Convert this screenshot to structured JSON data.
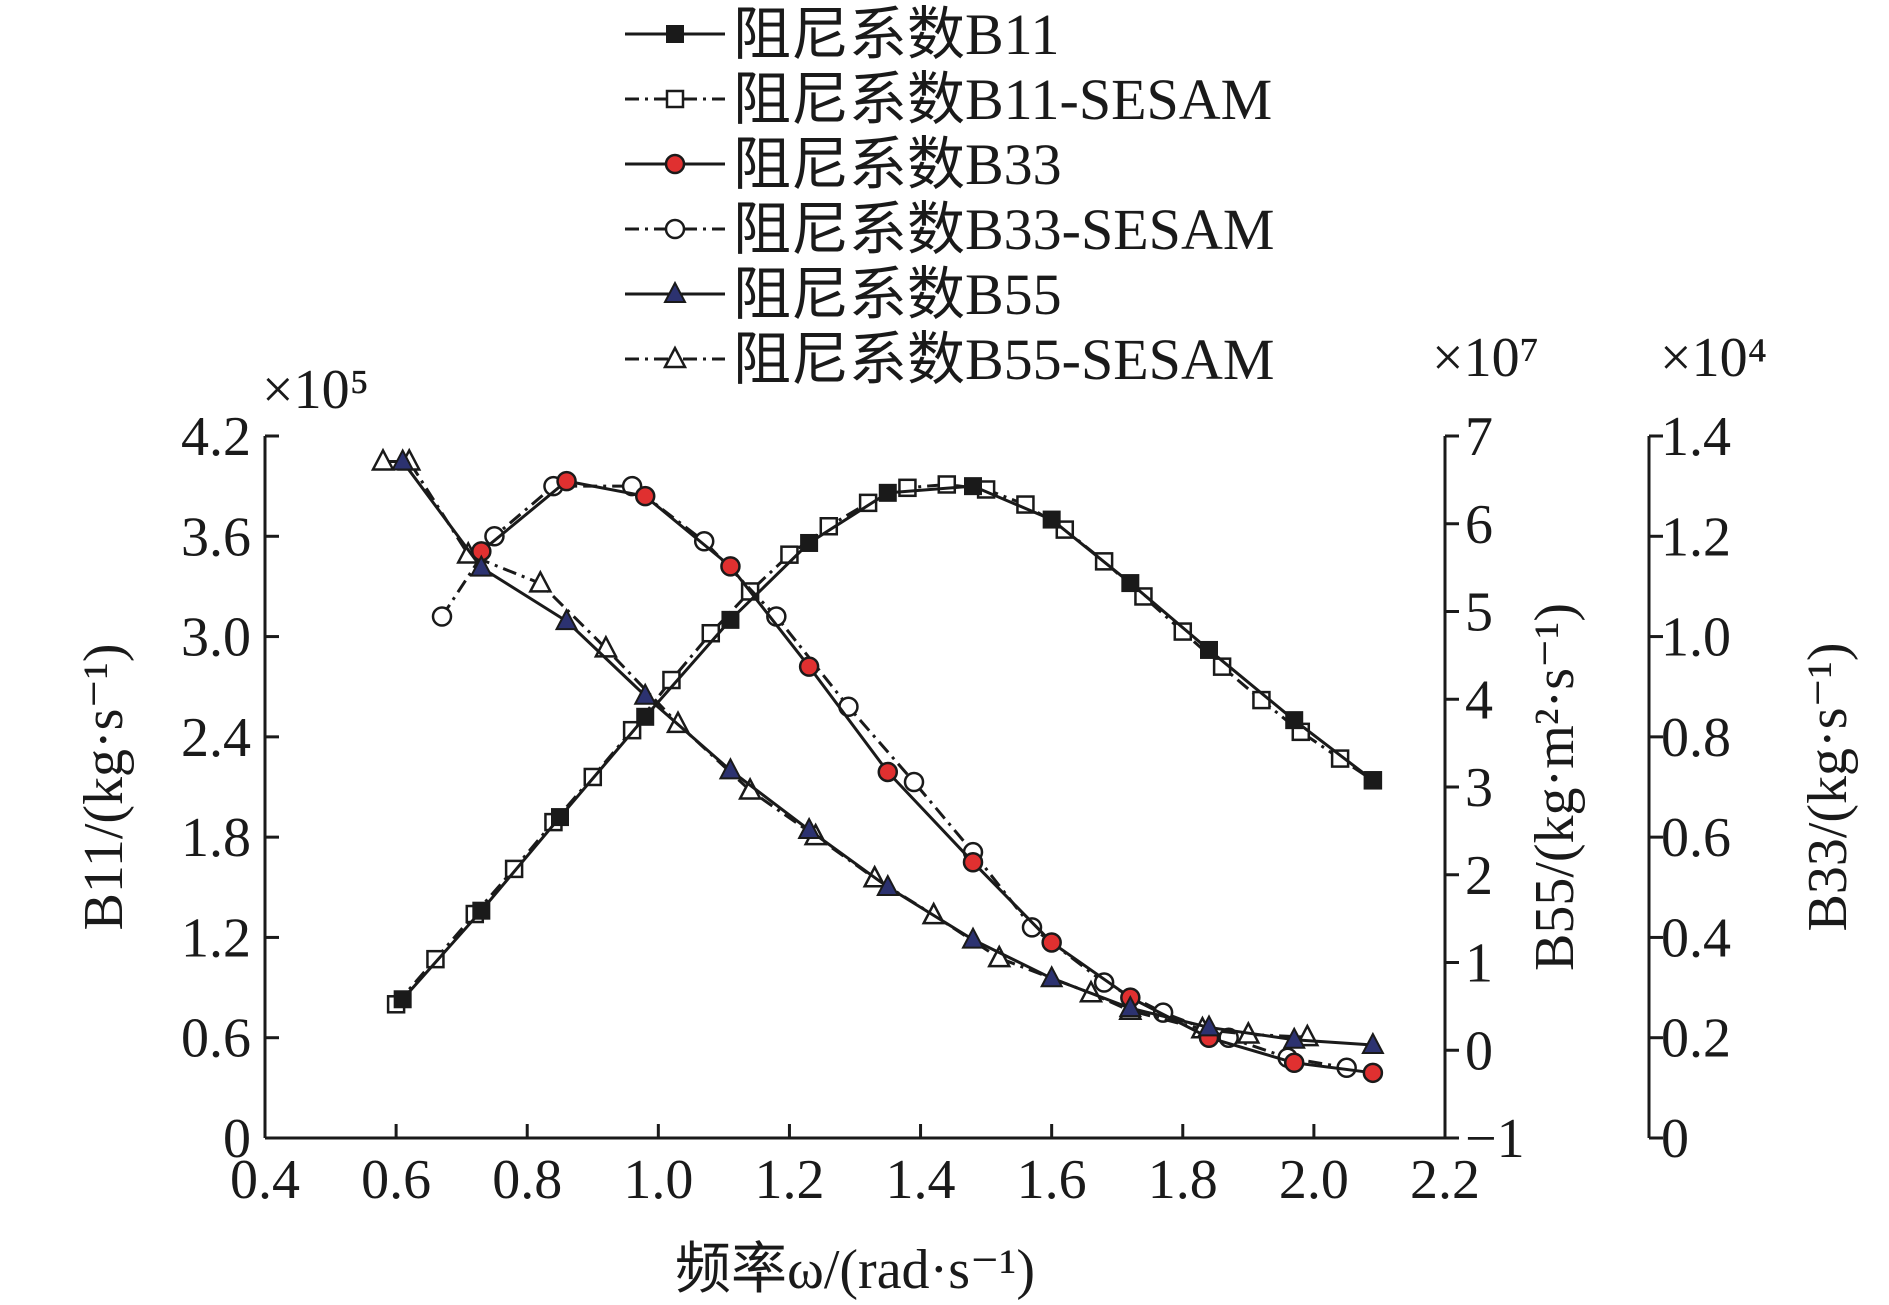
{
  "chart_data": {
    "type": "line",
    "xlabel": "频率ω/(rad·s⁻¹)",
    "xlim": [
      0.4,
      2.2
    ],
    "x_ticks": [
      "0.4",
      "0.6",
      "0.8",
      "1.0",
      "1.2",
      "1.4",
      "1.6",
      "1.8",
      "2.0",
      "2.2"
    ],
    "axes": {
      "left": {
        "label": "B11/(kg·s⁻¹)",
        "multiplier": "×10⁵",
        "ylim": [
          0,
          4.2
        ],
        "ticks": [
          "0",
          "0.6",
          "1.2",
          "1.8",
          "2.4",
          "3.0",
          "3.6",
          "4.2"
        ]
      },
      "right_inner": {
        "label": "B55/(kg·m²·s⁻¹)",
        "multiplier": "×10⁷",
        "ylim": [
          -1,
          7
        ],
        "ticks": [
          "−1",
          "0",
          "1",
          "2",
          "3",
          "4",
          "5",
          "6",
          "7"
        ]
      },
      "right_outer": {
        "label": "B33/(kg·s⁻¹)",
        "multiplier": "×10⁴",
        "ylim": [
          0,
          1.4
        ],
        "ticks": [
          "0",
          "0.2",
          "0.4",
          "0.6",
          "0.8",
          "1.0",
          "1.2",
          "1.4"
        ]
      }
    },
    "legend_position": "top-center",
    "series": [
      {
        "name": "阻尼系数B11",
        "axis": "left",
        "marker": "square-filled",
        "line": "solid",
        "color": "#1a1a1a",
        "points": [
          [
            0.61,
            0.83
          ],
          [
            0.73,
            1.36
          ],
          [
            0.85,
            1.92
          ],
          [
            0.98,
            2.52
          ],
          [
            1.11,
            3.1
          ],
          [
            1.23,
            3.56
          ],
          [
            1.35,
            3.86
          ],
          [
            1.48,
            3.9
          ],
          [
            1.6,
            3.7
          ],
          [
            1.72,
            3.32
          ],
          [
            1.84,
            2.92
          ],
          [
            1.97,
            2.5
          ],
          [
            2.09,
            2.14
          ]
        ]
      },
      {
        "name": "阻尼系数B11-SESAM",
        "axis": "left",
        "marker": "square-open",
        "line": "dashdot",
        "color": "#1a1a1a",
        "points": [
          [
            0.6,
            0.8
          ],
          [
            0.66,
            1.07
          ],
          [
            0.72,
            1.34
          ],
          [
            0.78,
            1.61
          ],
          [
            0.84,
            1.89
          ],
          [
            0.9,
            2.16
          ],
          [
            0.96,
            2.44
          ],
          [
            1.02,
            2.74
          ],
          [
            1.08,
            3.02
          ],
          [
            1.14,
            3.27
          ],
          [
            1.2,
            3.49
          ],
          [
            1.26,
            3.66
          ],
          [
            1.32,
            3.8
          ],
          [
            1.38,
            3.89
          ],
          [
            1.44,
            3.91
          ],
          [
            1.5,
            3.88
          ],
          [
            1.56,
            3.79
          ],
          [
            1.62,
            3.64
          ],
          [
            1.68,
            3.45
          ],
          [
            1.74,
            3.24
          ],
          [
            1.8,
            3.03
          ],
          [
            1.86,
            2.82
          ],
          [
            1.92,
            2.62
          ],
          [
            1.98,
            2.43
          ],
          [
            2.04,
            2.27
          ],
          [
            2.09,
            2.14
          ]
        ]
      },
      {
        "name": "阻尼系数B33",
        "axis": "right_outer",
        "marker": "circle-red",
        "line": "solid",
        "color": "#e03030",
        "points": [
          [
            0.73,
            1.17
          ],
          [
            0.86,
            1.31
          ],
          [
            0.98,
            1.28
          ],
          [
            1.11,
            1.14
          ],
          [
            1.23,
            0.94
          ],
          [
            1.35,
            0.73
          ],
          [
            1.48,
            0.55
          ],
          [
            1.6,
            0.39
          ],
          [
            1.72,
            0.28
          ],
          [
            1.84,
            0.2
          ],
          [
            1.97,
            0.15
          ],
          [
            2.09,
            0.13
          ]
        ]
      },
      {
        "name": "阻尼系数B33-SESAM",
        "axis": "right_outer",
        "marker": "circle-open",
        "line": "dashdot",
        "color": "#1a1a1a",
        "points": [
          [
            0.67,
            1.04
          ],
          [
            0.75,
            1.2
          ],
          [
            0.84,
            1.3
          ],
          [
            0.96,
            1.3
          ],
          [
            1.07,
            1.19
          ],
          [
            1.18,
            1.04
          ],
          [
            1.29,
            0.86
          ],
          [
            1.39,
            0.71
          ],
          [
            1.48,
            0.57
          ],
          [
            1.57,
            0.42
          ],
          [
            1.68,
            0.31
          ],
          [
            1.77,
            0.25
          ],
          [
            1.87,
            0.2
          ],
          [
            1.96,
            0.16
          ],
          [
            2.05,
            0.14
          ]
        ]
      },
      {
        "name": "阻尼系数B55",
        "axis": "right_inner",
        "marker": "triangle-navy",
        "line": "solid",
        "color": "#2c3270",
        "points": [
          [
            0.61,
            6.71
          ],
          [
            0.73,
            5.5
          ],
          [
            0.86,
            4.89
          ],
          [
            0.98,
            4.04
          ],
          [
            1.11,
            3.19
          ],
          [
            1.23,
            2.51
          ],
          [
            1.35,
            1.86
          ],
          [
            1.48,
            1.26
          ],
          [
            1.6,
            0.82
          ],
          [
            1.72,
            0.48
          ],
          [
            1.84,
            0.26
          ],
          [
            1.97,
            0.12
          ],
          [
            2.09,
            0.06
          ]
        ]
      },
      {
        "name": "阻尼系数B55-SESAM",
        "axis": "right_inner",
        "marker": "triangle-open",
        "line": "dashdot",
        "color": "#1a1a1a",
        "points": [
          [
            0.58,
            6.71
          ],
          [
            0.62,
            6.71
          ],
          [
            0.71,
            5.65
          ],
          [
            0.82,
            5.32
          ],
          [
            0.92,
            4.58
          ],
          [
            1.03,
            3.72
          ],
          [
            1.14,
            2.96
          ],
          [
            1.24,
            2.44
          ],
          [
            1.33,
            1.96
          ],
          [
            1.42,
            1.54
          ],
          [
            1.52,
            1.05
          ],
          [
            1.66,
            0.65
          ],
          [
            1.72,
            0.45
          ],
          [
            1.83,
            0.24
          ],
          [
            1.9,
            0.18
          ],
          [
            1.99,
            0.15
          ]
        ]
      }
    ]
  }
}
